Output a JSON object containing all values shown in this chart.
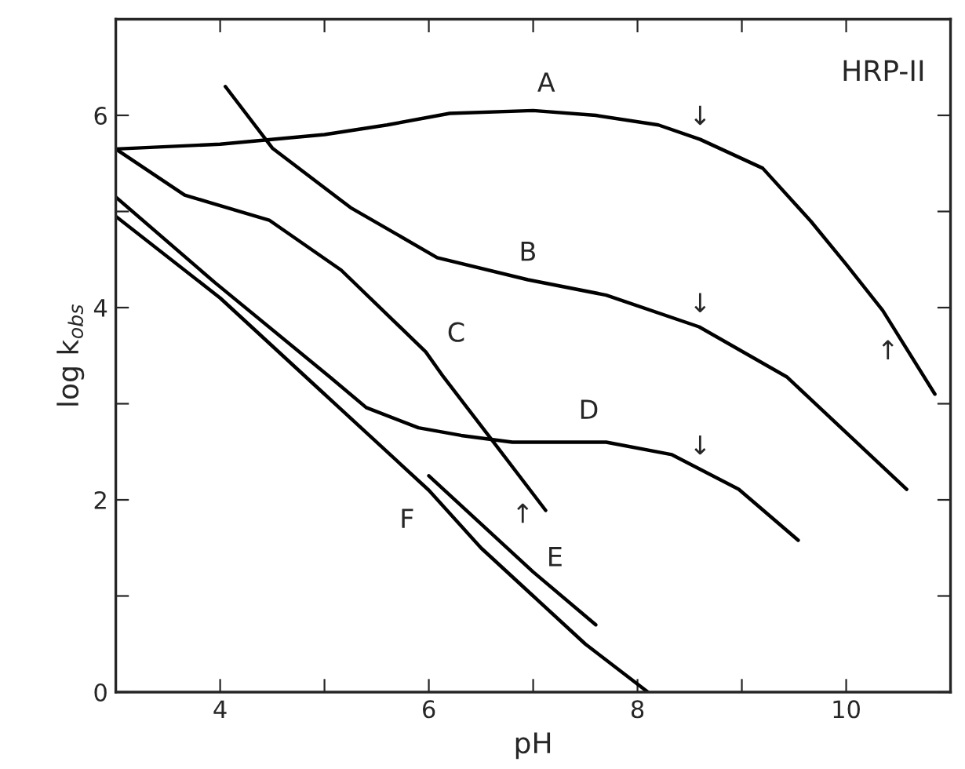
{
  "chart_data": {
    "type": "line",
    "xlabel": "pH",
    "ylabel": "log k$_{obs}$",
    "xlim": [
      3,
      11
    ],
    "ylim": [
      0,
      7
    ],
    "xticks": [
      4,
      {
        "value": 5,
        "label": null
      },
      6,
      {
        "value": 7,
        "label": null
      },
      8,
      {
        "value": 9,
        "label": null
      },
      10
    ],
    "yticks": [
      0,
      {
        "value": 1,
        "label": null
      },
      2,
      {
        "value": 3,
        "label": null
      },
      4,
      {
        "value": 5,
        "label": null
      },
      6
    ],
    "grid": false,
    "legend": false,
    "marker": "none",
    "line_style": "solid",
    "series": [
      {
        "color": "#000000",
        "x": [
          3,
          4,
          5,
          5.6,
          6.2,
          7,
          7.6,
          8.2,
          8.6,
          9.2,
          9.66,
          10.0,
          10.35,
          10.85
        ],
        "values": [
          5.65,
          5.7,
          5.8,
          5.9,
          6.02,
          6.05,
          6.0,
          5.9,
          5.75,
          5.45,
          4.9,
          4.45,
          3.97,
          3.1
        ]
      },
      {
        "color": "#000000",
        "x": [
          4.05,
          4.5,
          5.25,
          6.08,
          6.95,
          7.7,
          8.59,
          9.43,
          10.58
        ],
        "values": [
          6.3,
          5.66,
          5.04,
          4.52,
          4.29,
          4.13,
          3.8,
          3.28,
          2.11
        ]
      },
      {
        "color": "#000000",
        "x": [
          3,
          3.66,
          4.47,
          5.16,
          5.97,
          6.14,
          6.6,
          7.12
        ],
        "values": [
          5.65,
          5.17,
          4.91,
          4.39,
          3.54,
          3.28,
          2.63,
          1.89
        ]
      },
      {
        "color": "#000000",
        "x": [
          3,
          3.95,
          5.05,
          5.4,
          5.9,
          6.31,
          6.8,
          7.7,
          8.33,
          8.97,
          9.54
        ],
        "values": [
          5.15,
          4.26,
          3.28,
          2.96,
          2.75,
          2.67,
          2.6,
          2.6,
          2.47,
          2.11,
          1.58
        ]
      },
      {
        "color": "#000000",
        "x": [
          6.0,
          6.5,
          7.0,
          7.6
        ],
        "values": [
          2.25,
          1.75,
          1.25,
          0.7
        ]
      },
      {
        "color": "#000000",
        "x": [
          3,
          4,
          5,
          6,
          6.5,
          7,
          7.5,
          8.1
        ],
        "values": [
          4.95,
          4.1,
          3.1,
          2.1,
          1.5,
          1.0,
          0.5,
          0
        ]
      }
    ],
    "annotations": [
      "HRP-II",
      {
        "text": "A",
        "x": 7,
        "y": 6.05
      },
      {
        "text": "B",
        "x": 6.95,
        "y": 4.29
      },
      {
        "text": "C",
        "x": 5.97,
        "y": 3.54
      },
      {
        "text": "D",
        "x": 7.7,
        "y": 2.6
      },
      {
        "text": "E",
        "x": 7.0,
        "y": 1.25
      },
      {
        "text": "F",
        "x": 6.0,
        "y": 2.1
      },
      {
        "text": "↓",
        "x": 8.6,
        "y": 5.75
      },
      {
        "text": "↓",
        "x": 8.6,
        "y": 3.8
      },
      {
        "text": "↓",
        "x": 8.6,
        "y": 2.32
      },
      {
        "text": "↑",
        "x": 6.9,
        "y": 2.2
      },
      {
        "text": "↑",
        "x": 10.4,
        "y": 3.9
      }
    ]
  }
}
